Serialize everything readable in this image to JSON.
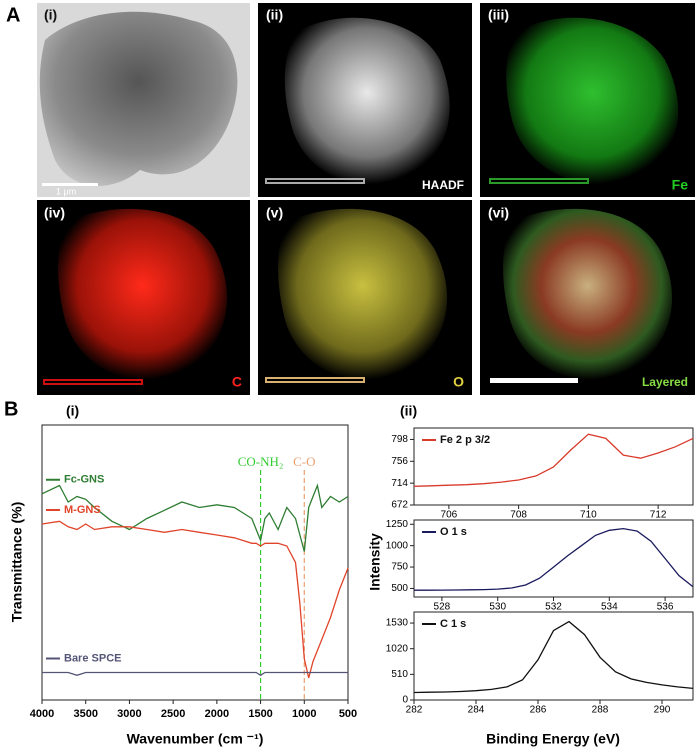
{
  "panel_a": {
    "label": "A",
    "images": [
      {
        "label": "(i)",
        "caption": "1 μm"
      },
      {
        "label": "(ii)",
        "caption": "HAADF"
      },
      {
        "label": "(iii)",
        "caption": "Fe"
      },
      {
        "label": "(iv)",
        "caption": "C"
      },
      {
        "label": "(v)",
        "caption": "O"
      },
      {
        "label": "(vi)",
        "caption": "Layered"
      }
    ]
  },
  "panel_b_label": "B",
  "chart_data": [
    {
      "type": "line",
      "panel": "(i)",
      "xlabel": "Wavenumber (cm ⁻¹)",
      "ylabel": "Transmittance (%)",
      "xlim": [
        4000,
        500
      ],
      "xticks": [
        4000,
        3500,
        3000,
        2500,
        2000,
        1500,
        1000,
        500
      ],
      "ylim": [
        0,
        100
      ],
      "x": [
        4000,
        3800,
        3700,
        3600,
        3500,
        3400,
        3200,
        3000,
        2800,
        2600,
        2400,
        2200,
        2000,
        1800,
        1700,
        1600,
        1550,
        1500,
        1450,
        1400,
        1300,
        1200,
        1100,
        1050,
        1000,
        950,
        900,
        850,
        800,
        700,
        600,
        500
      ],
      "series": [
        {
          "name": "Fc-GNS",
          "color": "#2e7d32",
          "values": [
            75,
            78,
            72,
            74,
            73,
            70,
            65,
            62,
            66,
            69,
            72,
            70,
            71,
            70,
            68,
            66,
            62,
            58,
            66,
            68,
            62,
            70,
            66,
            60,
            54,
            70,
            74,
            78,
            70,
            74,
            72,
            74
          ]
        },
        {
          "name": "M-GNS",
          "color": "#e0442a",
          "values": [
            64,
            65,
            63,
            62,
            64,
            62,
            63,
            63,
            62,
            61,
            62,
            61,
            60,
            59,
            58,
            57,
            57,
            56,
            57,
            57,
            57,
            56,
            50,
            35,
            15,
            8,
            14,
            18,
            22,
            30,
            40,
            48
          ]
        },
        {
          "name": "Bare SPCE",
          "color": "#555577",
          "values": [
            10,
            10,
            10,
            9,
            10,
            10,
            10,
            10,
            10,
            10,
            10,
            10,
            10,
            10,
            10,
            10,
            10,
            9,
            10,
            10,
            10,
            10,
            10,
            10,
            10,
            10,
            10,
            10,
            10,
            10,
            10,
            10
          ]
        }
      ],
      "annotations": [
        {
          "text": "CO-NH₂",
          "x": 1500,
          "color": "#33cc33"
        },
        {
          "text": "C-O",
          "x": 1000,
          "color": "#e8a070"
        }
      ]
    },
    {
      "type": "line",
      "panel": "(ii)",
      "xlim": [
        705,
        713
      ],
      "xticks": [
        706,
        708,
        710,
        712
      ],
      "ylim": [
        672,
        820
      ],
      "yticks": [
        672,
        714,
        756,
        798
      ],
      "x": [
        705,
        705.5,
        706,
        706.5,
        707,
        707.5,
        708,
        708.5,
        709,
        709.5,
        710,
        710.5,
        711,
        711.5,
        712,
        712.5,
        713
      ],
      "series": [
        {
          "name": "Fe 2 p 3/2",
          "color": "#d93a2b",
          "values": [
            708,
            709,
            710,
            711,
            713,
            716,
            720,
            728,
            745,
            778,
            808,
            800,
            768,
            762,
            772,
            784,
            800
          ]
        }
      ]
    },
    {
      "type": "line",
      "ylabel": "Intensity",
      "xlim": [
        527,
        537
      ],
      "xticks": [
        528,
        530,
        532,
        534,
        536
      ],
      "ylim": [
        400,
        1300
      ],
      "yticks": [
        500,
        750,
        1000,
        1250
      ],
      "x": [
        527,
        527.5,
        528,
        528.5,
        529,
        529.5,
        530,
        530.5,
        531,
        531.5,
        532,
        532.5,
        533,
        533.5,
        534,
        534.5,
        535,
        535.5,
        536,
        536.5,
        537
      ],
      "series": [
        {
          "name": "O 1 s",
          "color": "#1a1a5e",
          "values": [
            480,
            480,
            481,
            482,
            484,
            486,
            492,
            505,
            540,
            620,
            750,
            880,
            1000,
            1120,
            1180,
            1200,
            1170,
            1050,
            850,
            650,
            520
          ]
        }
      ]
    },
    {
      "type": "line",
      "xlabel": "Binding Energy (eV)",
      "xlim": [
        282,
        291
      ],
      "xticks": [
        282,
        284,
        286,
        288,
        290
      ],
      "ylim": [
        0,
        1750
      ],
      "yticks": [
        0,
        510,
        1020,
        1530
      ],
      "x": [
        282,
        282.5,
        283,
        283.5,
        284,
        284.5,
        285,
        285.5,
        286,
        286.5,
        287,
        287.5,
        288,
        288.5,
        289,
        289.5,
        290,
        290.5,
        291
      ],
      "series": [
        {
          "name": "C 1 s",
          "color": "#111111",
          "values": [
            150,
            155,
            160,
            170,
            185,
            210,
            260,
            400,
            800,
            1380,
            1560,
            1300,
            850,
            560,
            420,
            350,
            300,
            260,
            230
          ]
        }
      ]
    }
  ]
}
